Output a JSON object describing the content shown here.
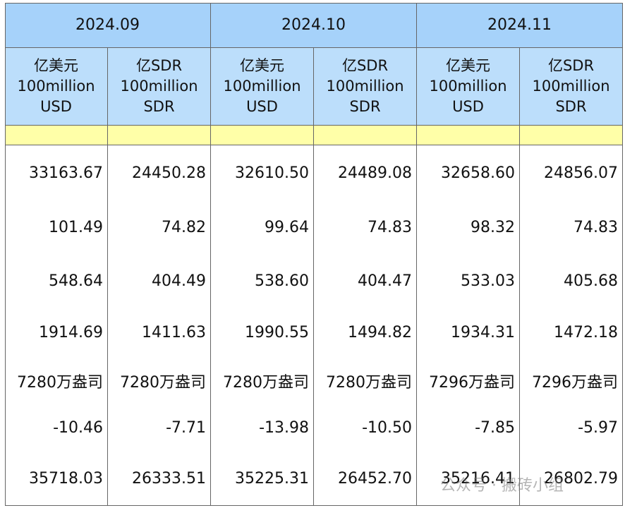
{
  "table": {
    "periods": [
      "2024.09",
      "2024.10",
      "2024.11"
    ],
    "units": [
      [
        "亿美元",
        "100million",
        "USD"
      ],
      [
        "亿SDR",
        "100million",
        "SDR"
      ],
      [
        "亿美元",
        "100million",
        "USD"
      ],
      [
        "亿SDR",
        "100million",
        "SDR"
      ],
      [
        "亿美元",
        "100million",
        "USD"
      ],
      [
        "亿SDR",
        "100million",
        "SDR"
      ]
    ],
    "rows": [
      [
        "33163.67",
        "24450.28",
        "32610.50",
        "24489.08",
        "32658.60",
        "24856.07"
      ],
      [
        "101.49",
        "74.82",
        "99.64",
        "74.83",
        "98.32",
        "74.83"
      ],
      [
        "548.64",
        "404.49",
        "538.60",
        "404.47",
        "533.03",
        "405.68"
      ],
      [
        "1914.69",
        "1411.63",
        "1990.55",
        "1494.82",
        "1934.31",
        "1472.18"
      ],
      [
        "7280万盎司",
        "7280万盎司",
        "7280万盎司",
        "7280万盎司",
        "7296万盎司",
        "7296万盎司"
      ],
      [
        "-10.46",
        "-7.71",
        "-13.98",
        "-10.50",
        "-7.85",
        "-5.97"
      ],
      [
        "35718.03",
        "26333.51",
        "35225.31",
        "26452.70",
        "35216.41",
        "26802.79"
      ]
    ]
  },
  "watermark": "公众号 · 搬砖小组"
}
